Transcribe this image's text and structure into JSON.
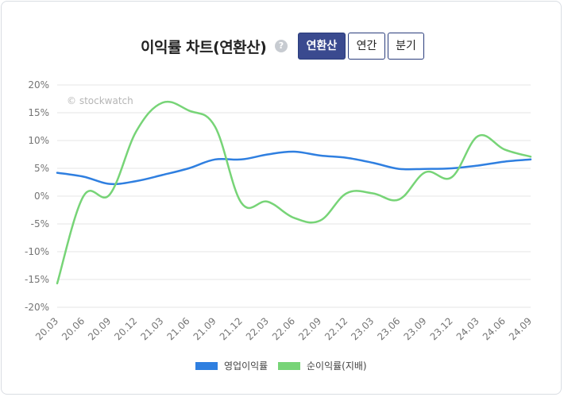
{
  "header": {
    "title": "이익률 차트(연환산)",
    "help_icon": "?",
    "tabs": [
      {
        "label": "연환산",
        "active": true
      },
      {
        "label": "연간",
        "active": false
      },
      {
        "label": "분기",
        "active": false
      }
    ]
  },
  "watermark": "© stockwatch",
  "colors": {
    "operating": "#2f7fe0",
    "net": "#77d477",
    "grid": "#e6e6e6"
  },
  "chart_data": {
    "type": "line",
    "title": "이익률 차트(연환산)",
    "categories": [
      "20.03",
      "20.06",
      "20.09",
      "20.12",
      "21.03",
      "21.06",
      "21.09",
      "21.12",
      "22.03",
      "22.06",
      "22.09",
      "22.12",
      "23.03",
      "23.06",
      "23.09",
      "23.12",
      "24.03",
      "24.06",
      "24.09"
    ],
    "yticks": [
      "20%",
      "15%",
      "10%",
      "5%",
      "0%",
      "-5%",
      "-10%",
      "-15%",
      "-20%"
    ],
    "ylim": [
      -20,
      20
    ],
    "grid": true,
    "legend_position": "bottom",
    "series": [
      {
        "name": "영업이익률",
        "color": "#2f7fe0",
        "values": [
          4.2,
          3.5,
          2.2,
          2.7,
          3.8,
          5.0,
          6.6,
          6.6,
          7.5,
          8.0,
          7.3,
          6.9,
          6.0,
          4.9,
          4.9,
          5.0,
          5.5,
          6.2,
          6.6
        ]
      },
      {
        "name": "순이익률(지배)",
        "color": "#77d477",
        "values": [
          -15.7,
          0.0,
          0.3,
          11.6,
          16.8,
          15.4,
          12.5,
          -1.2,
          -1.0,
          -3.9,
          -4.4,
          0.5,
          0.5,
          -0.6,
          4.3,
          3.4,
          10.8,
          8.4,
          7.1
        ]
      }
    ]
  }
}
